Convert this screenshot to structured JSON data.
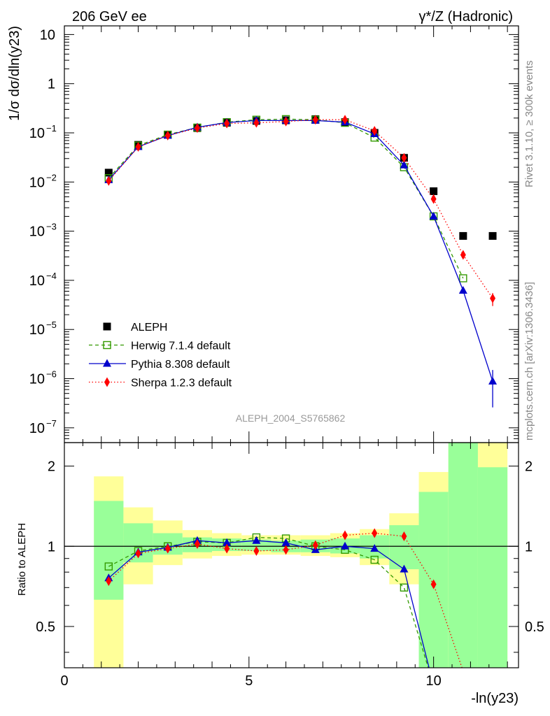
{
  "header": {
    "left": "206 GeV ee",
    "right_main": "γ*/Z (Hadronic)"
  },
  "side_text": {
    "rivet": "Rivet 3.1.10, ≥ 300k events",
    "mcplots": "mcplots.cern.ch [arXiv:1306.3436]"
  },
  "analysis_label": "ALEPH_2004_S5765862",
  "chart_data": {
    "type": "scatter",
    "ylabel_main": "1/σ dσ/dln(y23)",
    "ylabel_ratio": "Ratio to ALEPH",
    "xlabel": "-ln(y23)",
    "x_ticks": [
      "0",
      "5",
      "10"
    ],
    "ratio_ticks": [
      "0.5",
      "1",
      "2"
    ],
    "x": [
      1.2,
      2.0,
      2.8,
      3.6,
      4.4,
      5.2,
      6.0,
      6.8,
      7.6,
      8.4,
      9.2,
      10.0,
      10.8,
      11.6
    ],
    "bins": [
      [
        0.8,
        1.6
      ],
      [
        1.6,
        2.4
      ],
      [
        2.4,
        3.2
      ],
      [
        3.2,
        4.0
      ],
      [
        4.0,
        4.8
      ],
      [
        4.8,
        5.6
      ],
      [
        5.6,
        6.4
      ],
      [
        6.4,
        7.2
      ],
      [
        7.2,
        8.0
      ],
      [
        8.0,
        8.8
      ],
      [
        8.8,
        9.6
      ],
      [
        9.6,
        10.4
      ],
      [
        10.4,
        11.2
      ],
      [
        11.2,
        12.0
      ]
    ],
    "xlim": [
      0,
      12.3
    ],
    "ylim_main": [
      5e-08,
      15
    ],
    "ylim_ratio": [
      0.35,
      2.45
    ],
    "data": {
      "name": "ALEPH",
      "color": "#000000",
      "values": [
        0.0155,
        0.057,
        0.092,
        0.125,
        0.16,
        0.175,
        0.18,
        0.19,
        0.165,
        0.1,
        0.031,
        0.0065,
        0.0008,
        0.0008
      ],
      "band_inner": [
        [
          0.63,
          1.48
        ],
        [
          0.87,
          1.22
        ],
        [
          0.93,
          1.12
        ],
        [
          0.95,
          1.08
        ],
        [
          0.96,
          1.07
        ],
        [
          0.96,
          1.06
        ],
        [
          0.95,
          1.05
        ],
        [
          0.95,
          1.06
        ],
        [
          0.94,
          1.07
        ],
        [
          0.9,
          1.1
        ],
        [
          0.82,
          1.2
        ],
        [
          0.3,
          1.6
        ],
        [
          0.3,
          2.45
        ],
        [
          0.3,
          1.98
        ]
      ],
      "band_outer": [
        [
          0.3,
          1.83
        ],
        [
          0.72,
          1.4
        ],
        [
          0.85,
          1.25
        ],
        [
          0.9,
          1.15
        ],
        [
          0.92,
          1.12
        ],
        [
          0.93,
          1.1
        ],
        [
          0.93,
          1.1
        ],
        [
          0.92,
          1.1
        ],
        [
          0.91,
          1.12
        ],
        [
          0.85,
          1.16
        ],
        [
          0.72,
          1.33
        ],
        [
          0.3,
          1.9
        ],
        [
          0.3,
          2.45
        ],
        [
          0.3,
          2.45
        ]
      ]
    },
    "series": [
      {
        "name": "Herwig 7.1.4 default",
        "color": "#339900",
        "marker": "open-square",
        "dash": "5,4",
        "values": [
          0.012,
          0.055,
          0.092,
          0.128,
          0.165,
          0.185,
          0.19,
          0.185,
          0.16,
          0.08,
          0.02,
          0.002,
          0.00011
        ],
        "ratio": [
          0.84,
          0.96,
          1.0,
          1.04,
          1.03,
          1.08,
          1.07,
          1.0,
          0.97,
          0.89,
          0.7,
          0.3
        ]
      },
      {
        "name": "Pythia 8.308 default",
        "color": "#0000cc",
        "marker": "triangle",
        "dash": "",
        "values": [
          0.011,
          0.052,
          0.088,
          0.13,
          0.162,
          0.178,
          0.178,
          0.178,
          0.165,
          0.095,
          0.022,
          0.002,
          6.2e-05,
          8.8e-07
        ],
        "ratio": [
          0.76,
          0.95,
          0.99,
          1.05,
          1.03,
          1.05,
          1.03,
          0.97,
          1.0,
          0.98,
          0.82,
          0.3
        ],
        "err_last": [
          2.6e-07,
          1.5e-06
        ]
      },
      {
        "name": "Sherpa 1.2.3 default",
        "color": "#ff0000",
        "marker": "diamond",
        "dash": "1.5,3",
        "values": [
          0.0105,
          0.052,
          0.088,
          0.125,
          0.155,
          0.16,
          0.17,
          0.185,
          0.185,
          0.11,
          0.031,
          0.0045,
          0.00033,
          4.3e-05
        ],
        "ratio": [
          0.74,
          0.94,
          0.98,
          1.02,
          0.98,
          0.96,
          0.97,
          1.01,
          1.1,
          1.12,
          1.09,
          0.72,
          0.34
        ],
        "err_last": [
          3e-05,
          5.5e-05
        ]
      }
    ]
  }
}
